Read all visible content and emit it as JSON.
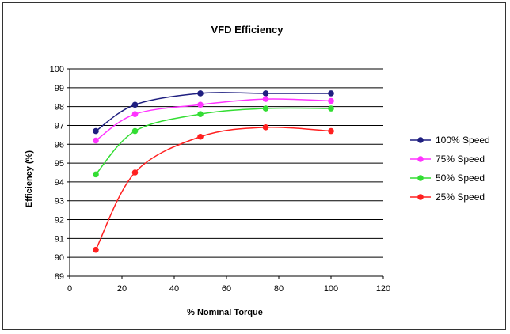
{
  "chart_data": {
    "type": "line",
    "title": "VFD Efficiency",
    "xlabel": "% Nominal Torque",
    "ylabel": "Efficiency (%)",
    "xlim": [
      0,
      120
    ],
    "ylim": [
      89,
      100
    ],
    "xticks": [
      0,
      20,
      40,
      60,
      80,
      100,
      120
    ],
    "yticks": [
      89,
      90,
      91,
      92,
      93,
      94,
      95,
      96,
      97,
      98,
      99,
      100
    ],
    "grid": "horizontal",
    "legend_position": "right",
    "series": [
      {
        "name": "100% Speed",
        "color": "#1f1f80",
        "x": [
          10,
          25,
          50,
          75,
          100
        ],
        "y": [
          96.7,
          98.1,
          98.7,
          98.7,
          98.7
        ]
      },
      {
        "name": "75% Speed",
        "color": "#ff33ff",
        "x": [
          10,
          25,
          50,
          75,
          100
        ],
        "y": [
          96.2,
          97.6,
          98.1,
          98.4,
          98.3
        ]
      },
      {
        "name": "50% Speed",
        "color": "#33dd33",
        "x": [
          10,
          25,
          50,
          75,
          100
        ],
        "y": [
          94.4,
          96.7,
          97.6,
          97.9,
          97.9
        ]
      },
      {
        "name": "25% Speed",
        "color": "#ff2020",
        "x": [
          10,
          25,
          50,
          75,
          100
        ],
        "y": [
          90.4,
          94.5,
          96.4,
          96.9,
          96.7
        ]
      }
    ]
  }
}
